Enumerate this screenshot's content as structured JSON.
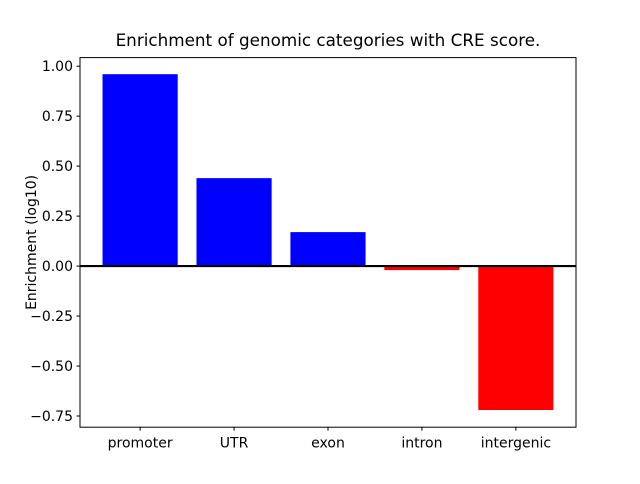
{
  "figure": {
    "background": "#ffffff"
  },
  "chart_data": {
    "type": "bar",
    "title": "Enrichment of genomic categories with CRE score.",
    "xlabel": "",
    "ylabel": "Enrichment (log10)",
    "categories": [
      "promoter",
      "UTR",
      "exon",
      "intron",
      "intergenic"
    ],
    "values": [
      0.96,
      0.44,
      0.17,
      -0.02,
      -0.72
    ],
    "colors": {
      "positive": "#0000ff",
      "negative": "#ff0000",
      "zero_line": "#000000",
      "spine": "#000000",
      "text": "#000000"
    },
    "yticks": [
      1.0,
      0.75,
      0.5,
      0.25,
      0.0,
      -0.25,
      -0.5,
      -0.75
    ],
    "ylim": [
      -0.806,
      1.043
    ],
    "xlim": [
      -0.64,
      4.64
    ],
    "bar_width": 0.8,
    "zero_line": true,
    "grid": false,
    "legend": null
  }
}
